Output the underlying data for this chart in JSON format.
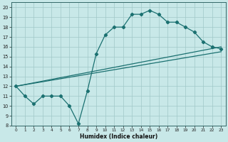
{
  "xlabel": "Humidex (Indice chaleur)",
  "xlim": [
    -0.5,
    23.5
  ],
  "ylim": [
    8,
    20.5
  ],
  "xticks": [
    0,
    1,
    2,
    3,
    4,
    5,
    6,
    7,
    8,
    9,
    10,
    11,
    12,
    13,
    14,
    15,
    16,
    17,
    18,
    19,
    20,
    21,
    22,
    23
  ],
  "yticks": [
    8,
    9,
    10,
    11,
    12,
    13,
    14,
    15,
    16,
    17,
    18,
    19,
    20
  ],
  "bg_color": "#c8e8e8",
  "line_color": "#1a7070",
  "grid_color": "#a0c8c8",
  "series": [
    {
      "x": [
        0,
        1,
        2,
        3,
        4,
        5,
        6,
        7,
        8,
        9,
        10,
        11,
        12,
        13,
        14,
        15,
        16,
        17,
        18,
        19,
        20,
        21,
        22,
        23
      ],
      "y": [
        12,
        11,
        10.2,
        11,
        11,
        11,
        10,
        8.2,
        11.5,
        15.3,
        17.2,
        18,
        18,
        19.3,
        19.3,
        19.7,
        19.3,
        18.5,
        18.5,
        18,
        17.5,
        16.5,
        16,
        15.8
      ],
      "marker": true,
      "linewidth": 0.9
    },
    {
      "x": [
        0,
        23
      ],
      "y": [
        12,
        16
      ],
      "marker": false,
      "linewidth": 0.9
    },
    {
      "x": [
        0,
        23
      ],
      "y": [
        12,
        15.5
      ],
      "marker": false,
      "linewidth": 0.9
    }
  ],
  "fig_width": 3.2,
  "fig_height": 2.0,
  "dpi": 100
}
